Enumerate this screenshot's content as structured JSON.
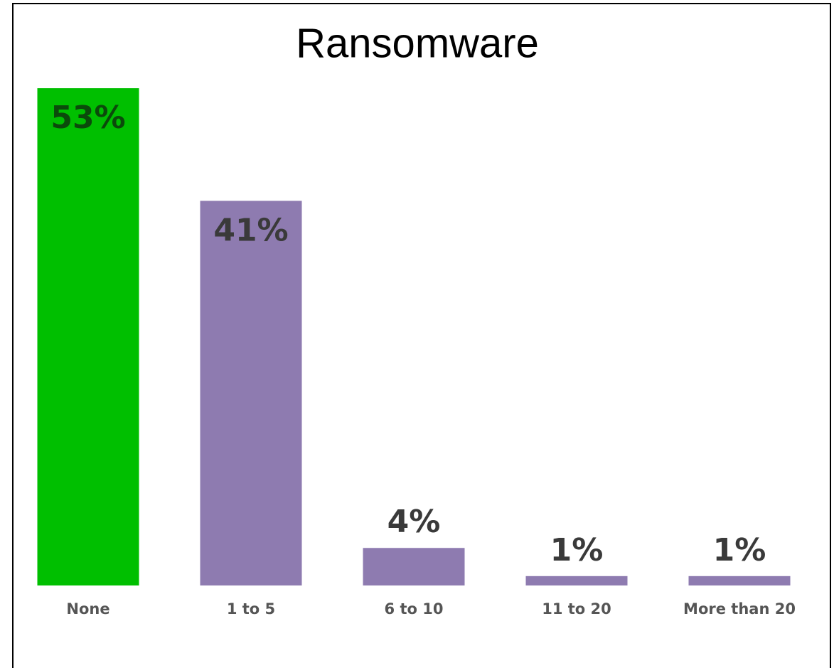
{
  "chart_data": {
    "type": "bar",
    "title": "Ransomware",
    "categories": [
      "None",
      "1 to 5",
      "6 to 10",
      "11 to 20",
      "More than 20"
    ],
    "values": [
      53,
      41,
      4,
      1,
      1
    ],
    "value_labels": [
      "53%",
      "41%",
      "4%",
      "1%",
      "1%"
    ],
    "colors": [
      "#00bf00",
      "#8e7bb0",
      "#8e7bb0",
      "#8e7bb0",
      "#8e7bb0"
    ]
  }
}
